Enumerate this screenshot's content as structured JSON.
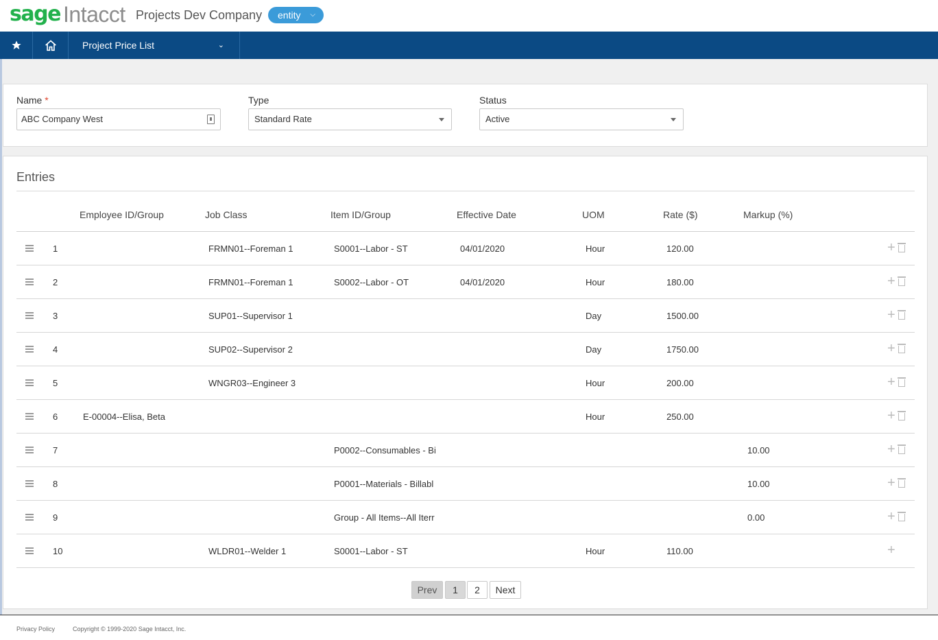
{
  "header": {
    "logo_sage": "sage",
    "logo_intacct": "Intacct",
    "company": "Projects Dev Company",
    "entity_label": "entity"
  },
  "nav": {
    "star_icon": "star-icon",
    "home_icon": "home-icon",
    "menu_label": "Project Price List"
  },
  "form": {
    "name_label": "Name",
    "name_required": "*",
    "name_value": "ABC Company West",
    "type_label": "Type",
    "type_value": "Standard Rate",
    "status_label": "Status",
    "status_value": "Active"
  },
  "entries": {
    "title": "Entries",
    "columns": [
      "Employee ID/Group",
      "Job Class",
      "Item ID/Group",
      "Effective Date",
      "UOM",
      "Rate ($)",
      "Markup (%)"
    ],
    "rows": [
      {
        "num": "1",
        "employee": "",
        "job_class": "FRMN01--Foreman 1",
        "item": "S0001--Labor - ST",
        "date": "04/01/2020",
        "uom": "Hour",
        "rate": "120.00",
        "markup": ""
      },
      {
        "num": "2",
        "employee": "",
        "job_class": "FRMN01--Foreman 1",
        "item": "S0002--Labor - OT",
        "date": "04/01/2020",
        "uom": "Hour",
        "rate": "180.00",
        "markup": ""
      },
      {
        "num": "3",
        "employee": "",
        "job_class": "SUP01--Supervisor 1",
        "item": "",
        "date": "",
        "uom": "Day",
        "rate": "1500.00",
        "markup": ""
      },
      {
        "num": "4",
        "employee": "",
        "job_class": "SUP02--Supervisor 2",
        "item": "",
        "date": "",
        "uom": "Day",
        "rate": "1750.00",
        "markup": ""
      },
      {
        "num": "5",
        "employee": "",
        "job_class": "WNGR03--Engineer 3",
        "item": "",
        "date": "",
        "uom": "Hour",
        "rate": "200.00",
        "markup": ""
      },
      {
        "num": "6",
        "employee": "E-00004--Elisa, Beta",
        "job_class": "",
        "item": "",
        "date": "",
        "uom": "Hour",
        "rate": "250.00",
        "markup": ""
      },
      {
        "num": "7",
        "employee": "",
        "job_class": "",
        "item": "P0002--Consumables - Bi",
        "date": "",
        "uom": "",
        "rate": "",
        "markup": "10.00"
      },
      {
        "num": "8",
        "employee": "",
        "job_class": "",
        "item": "P0001--Materials - Billabl",
        "date": "",
        "uom": "",
        "rate": "",
        "markup": "10.00"
      },
      {
        "num": "9",
        "employee": "",
        "job_class": "",
        "item": "Group - All Items--All Iterr",
        "date": "",
        "uom": "",
        "rate": "",
        "markup": "0.00"
      },
      {
        "num": "10",
        "employee": "",
        "job_class": "WLDR01--Welder 1",
        "item": "S0001--Labor - ST",
        "date": "",
        "uom": "Hour",
        "rate": "110.00",
        "markup": ""
      }
    ]
  },
  "pagination": {
    "prev": "Prev",
    "pages": [
      "1",
      "2"
    ],
    "next": "Next"
  },
  "footer": {
    "privacy": "Privacy Policy",
    "copyright": "Copyright © 1999-2020 Sage Intacct, Inc."
  },
  "colors": {
    "nav_bg": "#0b4a84",
    "brand_green": "#22b14c",
    "entity_pill": "#3b9bd9"
  }
}
